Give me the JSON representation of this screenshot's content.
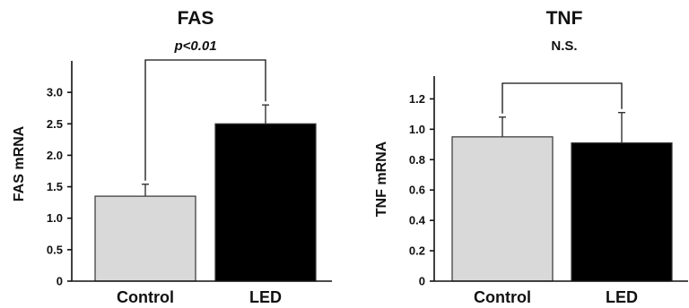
{
  "chart_data": [
    {
      "type": "bar",
      "title": "FAS",
      "significance": "p<0.01",
      "significance_italic": true,
      "ylabel": "FAS mRNA",
      "categories": [
        "Control",
        "LED"
      ],
      "values": [
        1.35,
        2.5
      ],
      "errors": [
        0.19,
        0.3
      ],
      "colors": [
        "#d9d9d9",
        "#000000"
      ],
      "yticks": [
        0,
        0.5,
        1.0,
        1.5,
        2.0,
        2.5,
        3.0
      ],
      "ytick_labels": [
        "0",
        "0.5",
        "1.0",
        "1.5",
        "2.0",
        "2.5",
        "3.0"
      ],
      "ylim": [
        0,
        3.5
      ],
      "grid": false
    },
    {
      "type": "bar",
      "title": "TNF",
      "significance": "N.S.",
      "significance_italic": false,
      "ylabel": "TNF mRNA",
      "categories": [
        "Control",
        "LED"
      ],
      "values": [
        0.95,
        0.91
      ],
      "errors": [
        0.13,
        0.2
      ],
      "colors": [
        "#d9d9d9",
        "#000000"
      ],
      "yticks": [
        0,
        0.2,
        0.4,
        0.6,
        0.8,
        1.0,
        1.2
      ],
      "ytick_labels": [
        "0",
        "0.2",
        "0.4",
        "0.6",
        "0.8",
        "1.0",
        "1.2"
      ],
      "ylim": [
        0,
        1.35
      ],
      "grid": false
    }
  ]
}
